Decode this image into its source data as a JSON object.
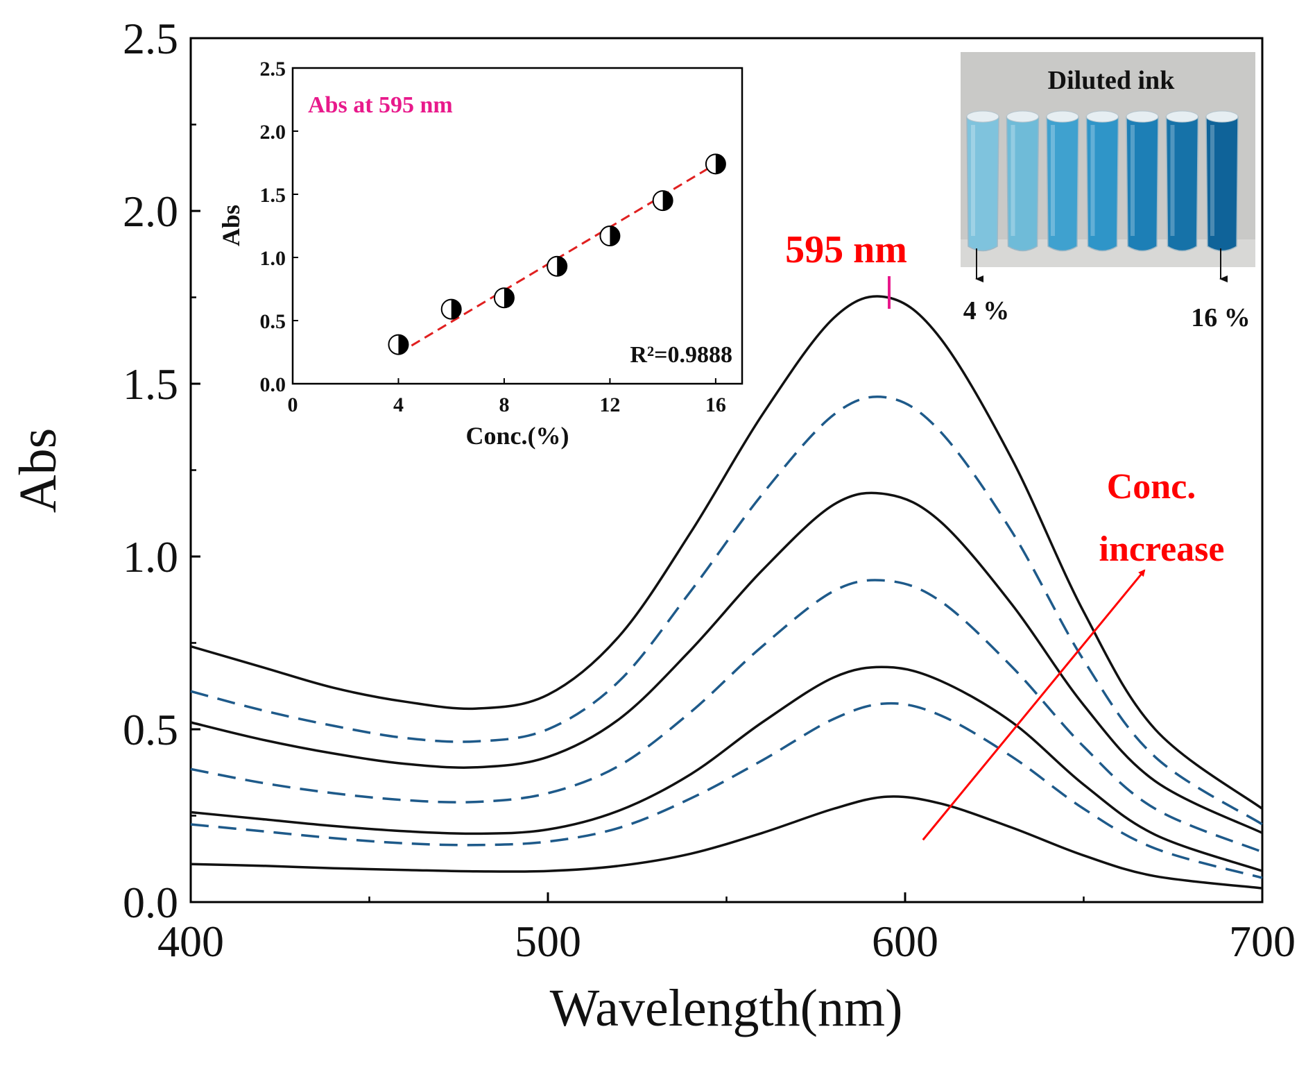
{
  "chart_data": [
    {
      "type": "line",
      "xlabel": "Wavelength(nm)",
      "ylabel": "Abs",
      "xlim": [
        400,
        700
      ],
      "ylim": [
        0,
        2.5
      ],
      "x_ticks": [
        "400",
        "500",
        "600",
        "700"
      ],
      "y_ticks": [
        "0.0",
        "0.5",
        "1.0",
        "1.5",
        "2.0",
        "2.5"
      ],
      "grid": false,
      "peak_label": "595 nm",
      "trend_label_line1": "Conc.",
      "trend_label_line2": "increase",
      "series": [
        {
          "style": "solid",
          "color": "#111111",
          "points": [
            [
              400,
              0.11
            ],
            [
              420,
              0.105
            ],
            [
              440,
              0.098
            ],
            [
              460,
              0.093
            ],
            [
              480,
              0.089
            ],
            [
              500,
              0.09
            ],
            [
              520,
              0.105
            ],
            [
              540,
              0.14
            ],
            [
              560,
              0.2
            ],
            [
              580,
              0.27
            ],
            [
              595,
              0.305
            ],
            [
              610,
              0.285
            ],
            [
              630,
              0.215
            ],
            [
              650,
              0.135
            ],
            [
              670,
              0.075
            ],
            [
              700,
              0.04
            ]
          ]
        },
        {
          "style": "dashed",
          "color": "#1e5a8a",
          "points": [
            [
              400,
              0.225
            ],
            [
              420,
              0.205
            ],
            [
              440,
              0.185
            ],
            [
              460,
              0.17
            ],
            [
              480,
              0.165
            ],
            [
              500,
              0.175
            ],
            [
              520,
              0.215
            ],
            [
              540,
              0.3
            ],
            [
              560,
              0.41
            ],
            [
              580,
              0.53
            ],
            [
              595,
              0.575
            ],
            [
              610,
              0.54
            ],
            [
              630,
              0.42
            ],
            [
              650,
              0.27
            ],
            [
              670,
              0.155
            ],
            [
              700,
              0.07
            ]
          ]
        },
        {
          "style": "solid",
          "color": "#111111",
          "points": [
            [
              400,
              0.26
            ],
            [
              420,
              0.24
            ],
            [
              440,
              0.22
            ],
            [
              460,
              0.205
            ],
            [
              480,
              0.198
            ],
            [
              500,
              0.21
            ],
            [
              520,
              0.265
            ],
            [
              540,
              0.37
            ],
            [
              560,
              0.52
            ],
            [
              580,
              0.65
            ],
            [
              595,
              0.68
            ],
            [
              610,
              0.64
            ],
            [
              630,
              0.52
            ],
            [
              650,
              0.34
            ],
            [
              670,
              0.195
            ],
            [
              700,
              0.09
            ]
          ]
        },
        {
          "style": "dashed",
          "color": "#1e5a8a",
          "points": [
            [
              400,
              0.385
            ],
            [
              420,
              0.345
            ],
            [
              440,
              0.315
            ],
            [
              460,
              0.295
            ],
            [
              480,
              0.29
            ],
            [
              500,
              0.315
            ],
            [
              520,
              0.395
            ],
            [
              540,
              0.55
            ],
            [
              560,
              0.74
            ],
            [
              580,
              0.9
            ],
            [
              595,
              0.93
            ],
            [
              610,
              0.87
            ],
            [
              630,
              0.68
            ],
            [
              650,
              0.45
            ],
            [
              670,
              0.27
            ],
            [
              700,
              0.145
            ]
          ]
        },
        {
          "style": "solid",
          "color": "#111111",
          "points": [
            [
              400,
              0.52
            ],
            [
              420,
              0.47
            ],
            [
              440,
              0.43
            ],
            [
              460,
              0.4
            ],
            [
              480,
              0.39
            ],
            [
              500,
              0.42
            ],
            [
              520,
              0.53
            ],
            [
              540,
              0.73
            ],
            [
              560,
              0.96
            ],
            [
              580,
              1.15
            ],
            [
              595,
              1.18
            ],
            [
              610,
              1.1
            ],
            [
              630,
              0.86
            ],
            [
              650,
              0.57
            ],
            [
              670,
              0.35
            ],
            [
              700,
              0.2
            ]
          ]
        },
        {
          "style": "dashed",
          "color": "#1e5a8a",
          "points": [
            [
              400,
              0.61
            ],
            [
              420,
              0.555
            ],
            [
              440,
              0.51
            ],
            [
              460,
              0.475
            ],
            [
              480,
              0.465
            ],
            [
              500,
              0.5
            ],
            [
              520,
              0.64
            ],
            [
              540,
              0.9
            ],
            [
              560,
              1.18
            ],
            [
              580,
              1.41
            ],
            [
              595,
              1.46
            ],
            [
              610,
              1.36
            ],
            [
              630,
              1.07
            ],
            [
              650,
              0.7
            ],
            [
              670,
              0.42
            ],
            [
              700,
              0.225
            ]
          ]
        },
        {
          "style": "solid",
          "color": "#111111",
          "points": [
            [
              400,
              0.74
            ],
            [
              420,
              0.68
            ],
            [
              440,
              0.62
            ],
            [
              460,
              0.58
            ],
            [
              480,
              0.56
            ],
            [
              500,
              0.6
            ],
            [
              520,
              0.77
            ],
            [
              540,
              1.07
            ],
            [
              560,
              1.41
            ],
            [
              580,
              1.69
            ],
            [
              595,
              1.75
            ],
            [
              610,
              1.63
            ],
            [
              630,
              1.28
            ],
            [
              650,
              0.84
            ],
            [
              670,
              0.5
            ],
            [
              700,
              0.27
            ]
          ]
        }
      ],
      "arrow": {
        "from": [
          605,
          0.18
        ],
        "to": [
          667,
          0.96
        ],
        "color": "#ff0000"
      }
    },
    {
      "type": "scatter",
      "title": "Abs at 595 nm",
      "xlabel": "Conc.(%)",
      "ylabel": "Abs",
      "xlim": [
        0,
        17
      ],
      "ylim": [
        0,
        2.5
      ],
      "x_ticks": [
        "0",
        "4",
        "8",
        "12",
        "16"
      ],
      "y_ticks": [
        "0.0",
        "0.5",
        "1.0",
        "1.5",
        "2.0",
        "2.5"
      ],
      "grid": false,
      "annotation": "R²=0.9888",
      "points": [
        [
          4,
          0.31
        ],
        [
          6,
          0.59
        ],
        [
          8,
          0.68
        ],
        [
          10,
          0.93
        ],
        [
          12,
          1.17
        ],
        [
          14,
          1.45
        ],
        [
          16,
          1.74
        ]
      ],
      "fit": {
        "from": [
          4,
          0.24
        ],
        "to": [
          16,
          1.74
        ],
        "color": "#e02020",
        "style": "dashed"
      }
    }
  ],
  "photo": {
    "title": "Diluted ink",
    "label_left": "4 %",
    "label_right": "16 %",
    "vial_colors": [
      "#7fc3dd",
      "#6fbbd8",
      "#3fa1cf",
      "#2f95c8",
      "#1d7fb6",
      "#1672a8",
      "#0f6399"
    ]
  },
  "colors": {
    "peak_label": "#ff0000",
    "inset_title": "#e8198b",
    "peak_tick": "#e8198b"
  }
}
